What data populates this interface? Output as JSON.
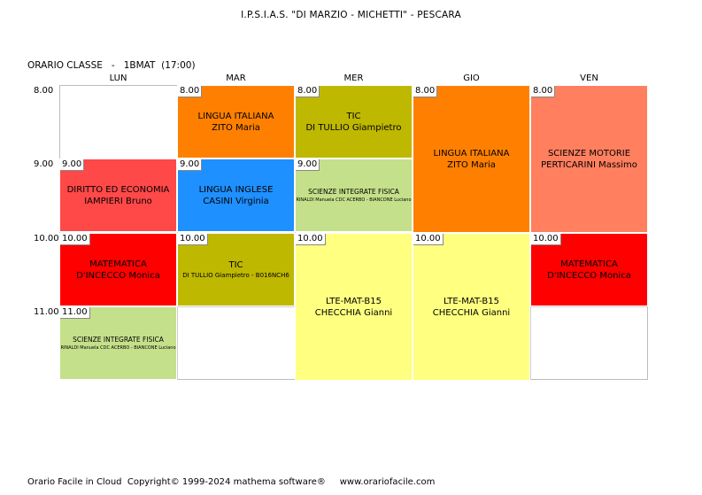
{
  "header": {
    "school": "I.P.S.I.A.S. \"DI MARZIO - MICHETTI\" - PESCARA",
    "class_label": "ORARIO CLASSE   -   1BMAT  (17:00)"
  },
  "days": [
    "LUN",
    "MAR",
    "MER",
    "GIO",
    "VEN"
  ],
  "times": [
    "8.00",
    "9.00",
    "10.00",
    "11.00"
  ],
  "lessons": [
    {
      "day": 0,
      "start": 1,
      "span": 1,
      "badge": "9.00",
      "line1": "DIRITTO ED ECONOMIA",
      "line2": "IAMPIERI Bruno",
      "color": "#ff4848",
      "small": false
    },
    {
      "day": 0,
      "start": 2,
      "span": 1,
      "badge": "10.00",
      "line1": "MATEMATICA",
      "line2": "D'INCECCO Monica",
      "color": "#ff0000",
      "small": false
    },
    {
      "day": 0,
      "start": 3,
      "span": 1,
      "badge": "11.00",
      "line1": "SCIENZE INTEGRATE FISICA",
      "line2": "RINALDI Manuela CDC ACERBO - BIANCONE Luciano",
      "color": "#c4e08a",
      "small": true
    },
    {
      "day": 1,
      "start": 0,
      "span": 1,
      "badge": "8.00",
      "line1": "LINGUA ITALIANA",
      "line2": "ZITO Maria",
      "color": "#ff8000",
      "small": false
    },
    {
      "day": 1,
      "start": 1,
      "span": 1,
      "badge": "9.00",
      "line1": "LINGUA INGLESE",
      "line2": "CASINI Virginia",
      "color": "#1e90ff",
      "small": false
    },
    {
      "day": 1,
      "start": 2,
      "span": 1,
      "badge": "10.00",
      "line1": "TIC",
      "line2": "DI TULLIO Giampietro - B016NCH6",
      "color": "#bfb800",
      "small": false,
      "line2small": true
    },
    {
      "day": 2,
      "start": 0,
      "span": 1,
      "badge": "8.00",
      "line1": "TIC",
      "line2": "DI TULLIO Giampietro",
      "color": "#bfb800",
      "small": false
    },
    {
      "day": 2,
      "start": 1,
      "span": 1,
      "badge": "9.00",
      "line1": "SCIENZE INTEGRATE FISICA",
      "line2": "RINALDI Manuela CDC ACERBO - BIANCONE Luciano",
      "color": "#c4e08a",
      "small": true
    },
    {
      "day": 2,
      "start": 2,
      "span": 2,
      "badge": "10.00",
      "line1": "LTE-MAT-B15",
      "line2": "CHECCHIA Gianni",
      "color": "#ffff80",
      "small": false
    },
    {
      "day": 3,
      "start": 0,
      "span": 2,
      "badge": "8.00",
      "line1": "LINGUA ITALIANA",
      "line2": "ZITO Maria",
      "color": "#ff8000",
      "small": false
    },
    {
      "day": 3,
      "start": 2,
      "span": 2,
      "badge": "10.00",
      "line1": "LTE-MAT-B15",
      "line2": "CHECCHIA Gianni",
      "color": "#ffff80",
      "small": false
    },
    {
      "day": 4,
      "start": 0,
      "span": 2,
      "badge": "8.00",
      "line1": "SCIENZE MOTORIE",
      "line2": "PERTICARINI Massimo",
      "color": "#ff7f5f",
      "small": false
    },
    {
      "day": 4,
      "start": 2,
      "span": 1,
      "badge": "10.00",
      "line1": "MATEMATICA",
      "line2": "D'INCECCO Monica",
      "color": "#ff0000",
      "small": false
    }
  ],
  "footer": "Orario Facile in Cloud  Copyright© 1999-2024 mathema software®     www.orariofacile.com"
}
